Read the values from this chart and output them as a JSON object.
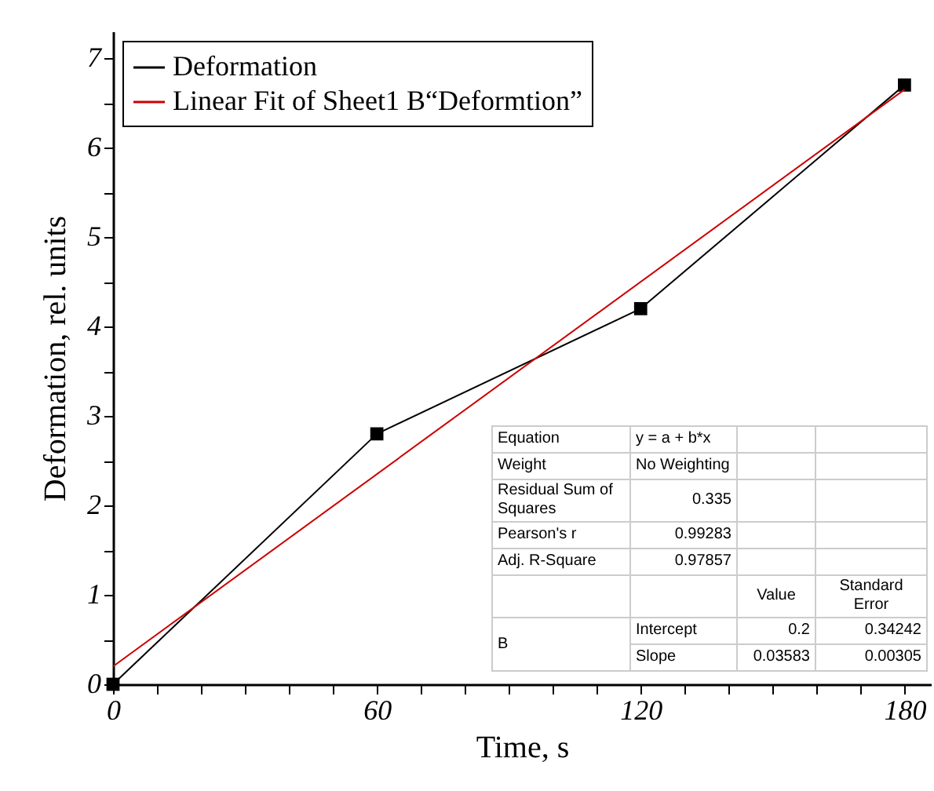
{
  "chart_data": {
    "type": "line",
    "xlabel": "Time, s",
    "ylabel": "Deformation, rel. units",
    "x": [
      0,
      60,
      120,
      180
    ],
    "series": [
      {
        "name": "Deformation",
        "color": "#000000",
        "values": [
          0,
          2.8,
          4.2,
          6.7
        ]
      },
      {
        "name": "Linear Fit of Sheet1 B“Deformtion”",
        "color": "#cc0000",
        "type": "line",
        "marker": "none",
        "x": [
          0,
          180
        ],
        "values": [
          0.2,
          6.65
        ]
      }
    ],
    "marker": "square",
    "legend": "top left",
    "grid": false,
    "xlim": [
      0,
      186
    ],
    "xticks": [
      0,
      {
        "value": 10,
        "label": null
      },
      {
        "value": 20,
        "label": null
      },
      {
        "value": 30,
        "label": null
      },
      {
        "value": 40,
        "label": null
      },
      {
        "value": 50,
        "label": null
      },
      60,
      {
        "value": 70,
        "label": null
      },
      {
        "value": 80,
        "label": null
      },
      {
        "value": 90,
        "label": null
      },
      {
        "value": 100,
        "label": null
      },
      {
        "value": 110,
        "label": null
      },
      120,
      {
        "value": 130,
        "label": null
      },
      {
        "value": 140,
        "label": null
      },
      {
        "value": 150,
        "label": null
      },
      {
        "value": 160,
        "label": null
      },
      {
        "value": 170,
        "label": null
      },
      180
    ],
    "ylim": [
      0,
      7.3
    ],
    "yticks": [
      0,
      {
        "value": 0.5,
        "label": null
      },
      1,
      {
        "value": 1.5,
        "label": null
      },
      2,
      {
        "value": 2.5,
        "label": null
      },
      3,
      {
        "value": 3.5,
        "label": null
      },
      4,
      {
        "value": 4.5,
        "label": null
      },
      5,
      {
        "value": 5.5,
        "label": null
      },
      6,
      {
        "value": 6.5,
        "label": null
      },
      7
    ],
    "annotations": [
      "Equation",
      "y = a + b*x",
      "Weight",
      "No Weighting",
      "Residual Sum of Squares",
      "0.335",
      "Pearson's r",
      "0.99283",
      "Adj. R-Square",
      "0.97857",
      "Value",
      "Standard Error",
      "B",
      "Intercept",
      "0.2",
      "0.34242",
      "Slope",
      "0.03583",
      "0.00305"
    ]
  }
}
